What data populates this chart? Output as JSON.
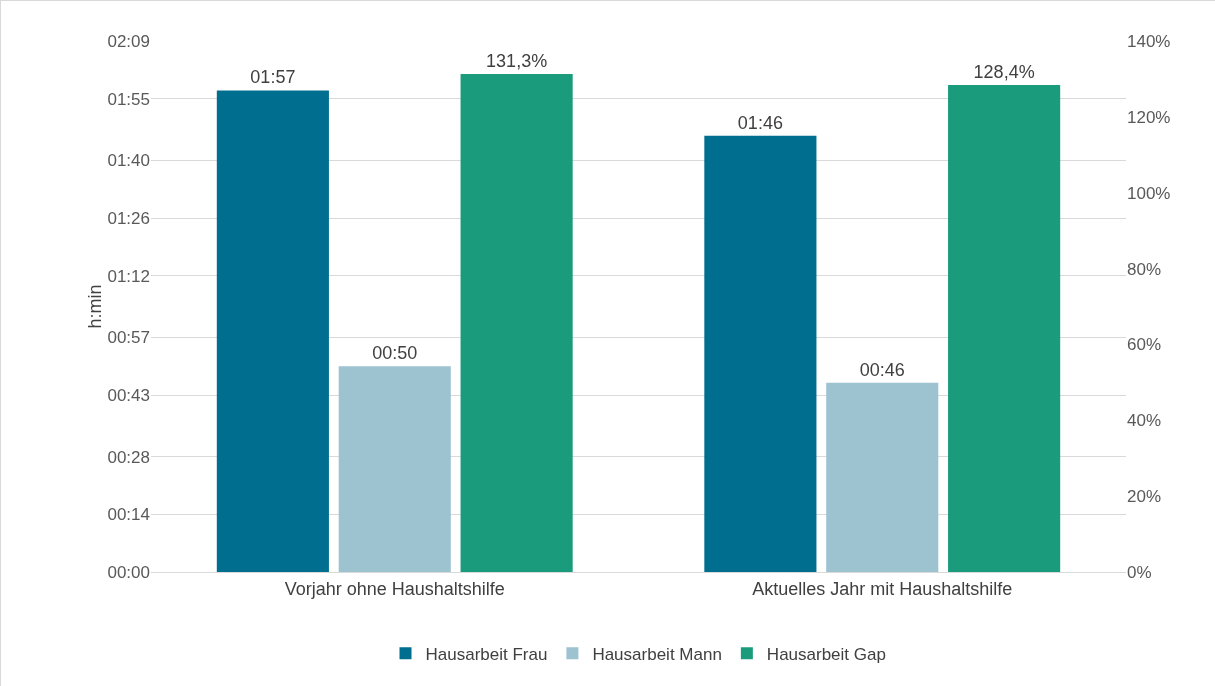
{
  "chart_data": {
    "type": "bar",
    "ylabel": "h:min",
    "categories": [
      "Vorjahr ohne Haushaltshilfe",
      "Aktuelles Jahr mit Haushaltshilfe"
    ],
    "series": [
      {
        "name": "Hausarbeit Frau",
        "color": "#006e8f",
        "values": [
          117,
          106
        ],
        "value_labels": [
          "01:57",
          "01:46"
        ]
      },
      {
        "name": "Hausarbeit Mann",
        "color": "#9dc3d0",
        "values": [
          50,
          46
        ],
        "value_labels": [
          "00:50",
          "00:46"
        ]
      },
      {
        "name": "Hausarbeit Gap",
        "color": "#1a9c7c",
        "axis": "y2",
        "values": [
          131.3,
          128.4
        ],
        "value_labels": [
          "131,3%",
          "128,4%"
        ]
      }
    ],
    "ylim": [
      0,
      129
    ],
    "yticks": [
      {
        "value": 0,
        "label": "00:00"
      },
      {
        "value": 14,
        "label": "00:14"
      },
      {
        "value": 28,
        "label": "00:28"
      },
      {
        "value": 43,
        "label": "00:43"
      },
      {
        "value": 57,
        "label": "00:57"
      },
      {
        "value": 72,
        "label": "01:12"
      },
      {
        "value": 86,
        "label": "01:26"
      },
      {
        "value": 100,
        "label": "01:40"
      },
      {
        "value": 115,
        "label": "01:55"
      },
      {
        "value": 129,
        "label": "02:09"
      }
    ],
    "y2lim": [
      0,
      140
    ],
    "y2ticks": [
      {
        "value": 0,
        "label": "0%"
      },
      {
        "value": 20,
        "label": "20%"
      },
      {
        "value": 40,
        "label": "40%"
      },
      {
        "value": 60,
        "label": "60%"
      },
      {
        "value": 80,
        "label": "80%"
      },
      {
        "value": 100,
        "label": "100%"
      },
      {
        "value": 120,
        "label": "120%"
      },
      {
        "value": 140,
        "label": "140%"
      }
    ],
    "grid": true,
    "legend": "bottom"
  }
}
